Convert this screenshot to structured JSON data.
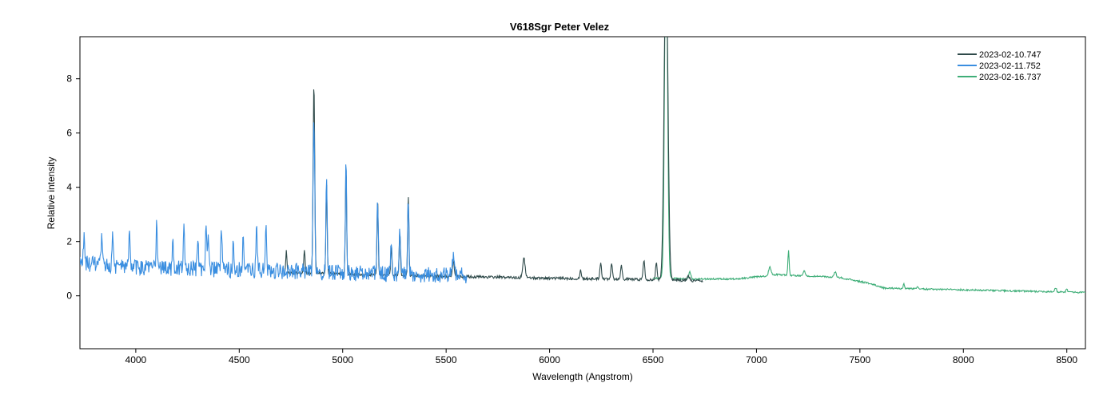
{
  "chart_data": {
    "type": "line",
    "title": "V618Sgr   Peter Velez",
    "xlabel": "Wavelength (Angstrom)",
    "ylabel": "Relative intensity",
    "xlim": [
      3730,
      8590
    ],
    "ylim": [
      -1.95,
      9.55
    ],
    "xticks": [
      4000,
      4500,
      5000,
      5500,
      6000,
      6500,
      7000,
      7500,
      8000,
      8500
    ],
    "yticks": [
      0,
      2,
      4,
      6,
      8
    ],
    "grid": false,
    "legend_position": "top-right",
    "series": [
      {
        "name": "2023-02-10.747",
        "color": "#2f4a4a",
        "range": [
          4720,
          6740
        ],
        "continuum": [
          [
            4720,
            0.85
          ],
          [
            5000,
            0.8
          ],
          [
            5500,
            0.72
          ],
          [
            6000,
            0.65
          ],
          [
            6500,
            0.6
          ],
          [
            6740,
            0.55
          ]
        ],
        "noise": 0.05,
        "lines": [
          [
            4728,
            0.8,
            3
          ],
          [
            4815,
            0.9,
            3
          ],
          [
            4861,
            7.0,
            4
          ],
          [
            4922,
            3.3,
            3
          ],
          [
            5016,
            4.0,
            3
          ],
          [
            5169,
            2.8,
            3
          ],
          [
            5235,
            1.1,
            3
          ],
          [
            5276,
            1.6,
            3
          ],
          [
            5317,
            2.9,
            3
          ],
          [
            5535,
            0.6,
            4
          ],
          [
            5876,
            0.7,
            6
          ],
          [
            6150,
            0.3,
            4
          ],
          [
            6247,
            0.6,
            4
          ],
          [
            6300,
            0.6,
            4
          ],
          [
            6347,
            0.5,
            4
          ],
          [
            6456,
            0.7,
            4
          ],
          [
            6516,
            0.6,
            4
          ],
          [
            6563,
            12.0,
            9
          ],
          [
            6670,
            0.2,
            5
          ]
        ]
      },
      {
        "name": "2023-02-11.752",
        "color": "#3a8ee0",
        "range": [
          3730,
          5600
        ],
        "continuum": [
          [
            3730,
            1.2
          ],
          [
            4000,
            1.05
          ],
          [
            4500,
            0.95
          ],
          [
            5000,
            0.85
          ],
          [
            5600,
            0.75
          ]
        ],
        "noise": 0.3,
        "lines": [
          [
            3750,
            1.1,
            3
          ],
          [
            3835,
            0.9,
            3
          ],
          [
            3889,
            1.2,
            3
          ],
          [
            3970,
            1.4,
            3
          ],
          [
            4101,
            1.7,
            3
          ],
          [
            4179,
            1.2,
            3
          ],
          [
            4233,
            1.6,
            3
          ],
          [
            4300,
            1.2,
            3
          ],
          [
            4340,
            1.9,
            3
          ],
          [
            4351,
            1.3,
            3
          ],
          [
            4414,
            1.4,
            3
          ],
          [
            4471,
            1.1,
            3
          ],
          [
            4520,
            1.4,
            3
          ],
          [
            4584,
            1.7,
            3
          ],
          [
            4629,
            1.6,
            3
          ],
          [
            4861,
            5.8,
            4
          ],
          [
            4922,
            3.3,
            3
          ],
          [
            5016,
            4.0,
            3
          ],
          [
            5169,
            2.8,
            3
          ],
          [
            5235,
            1.1,
            3
          ],
          [
            5276,
            1.6,
            3
          ],
          [
            5317,
            2.9,
            3
          ],
          [
            5535,
            0.8,
            4
          ]
        ]
      },
      {
        "name": "2023-02-16.737",
        "color": "#3fae78",
        "range": [
          6500,
          8590
        ],
        "continuum": [
          [
            6500,
            0.65
          ],
          [
            6700,
            0.62
          ],
          [
            6900,
            0.62
          ],
          [
            7100,
            0.78
          ],
          [
            7400,
            0.68
          ],
          [
            7550,
            0.45
          ],
          [
            7620,
            0.28
          ],
          [
            8000,
            0.22
          ],
          [
            8590,
            0.12
          ]
        ],
        "noise": 0.03,
        "lines": [
          [
            6563,
            13.0,
            7
          ],
          [
            6678,
            0.25,
            5
          ],
          [
            7065,
            0.3,
            6
          ],
          [
            7155,
            0.9,
            3
          ],
          [
            7230,
            0.2,
            4
          ],
          [
            7380,
            0.2,
            5
          ],
          [
            7712,
            0.2,
            3
          ],
          [
            7780,
            0.1,
            3
          ],
          [
            8446,
            0.15,
            4
          ],
          [
            8500,
            0.1,
            4
          ]
        ]
      }
    ]
  }
}
